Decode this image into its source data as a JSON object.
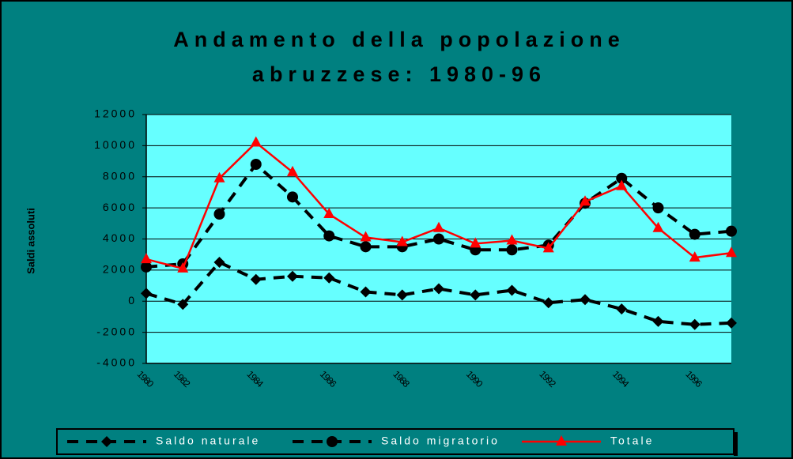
{
  "chart_data": {
    "type": "line",
    "title": [
      "Andamento della popolazione",
      "abruzzese: 1980-96"
    ],
    "ylabel": "Saldi assoluti",
    "categories": [
      "1980",
      "1982",
      null,
      "1984",
      null,
      "1986",
      null,
      "1988",
      null,
      "1990",
      null,
      "1992",
      null,
      "1994",
      null,
      "1996",
      null
    ],
    "series": [
      {
        "name": "Saldo naturale",
        "color": "#000000",
        "marker": "diamond",
        "dashed": true,
        "values": [
          500,
          -200,
          2500,
          1400,
          1600,
          1500,
          600,
          400,
          800,
          400,
          700,
          -100,
          100,
          -500,
          -1300,
          -1500,
          -1400
        ]
      },
      {
        "name": "Saldo migratorio",
        "color": "#000000",
        "marker": "circle",
        "dashed": true,
        "values": [
          2200,
          2400,
          5600,
          8800,
          6700,
          4200,
          3500,
          3500,
          4000,
          3300,
          3300,
          3600,
          6300,
          7900,
          6000,
          4300,
          4500
        ]
      },
      {
        "name": "Totale",
        "color": "#ff0000",
        "marker": "triangle",
        "dashed": false,
        "values": [
          2700,
          2100,
          7900,
          10200,
          8300,
          5600,
          4100,
          3800,
          4700,
          3700,
          3900,
          3400,
          6400,
          7400,
          4700,
          2800,
          3100
        ]
      }
    ],
    "ylim": [
      -4000,
      12000
    ],
    "yticks": [
      -4000,
      -2000,
      0,
      2000,
      4000,
      6000,
      8000,
      10000,
      12000
    ],
    "grid": true,
    "legend": "bottom"
  }
}
